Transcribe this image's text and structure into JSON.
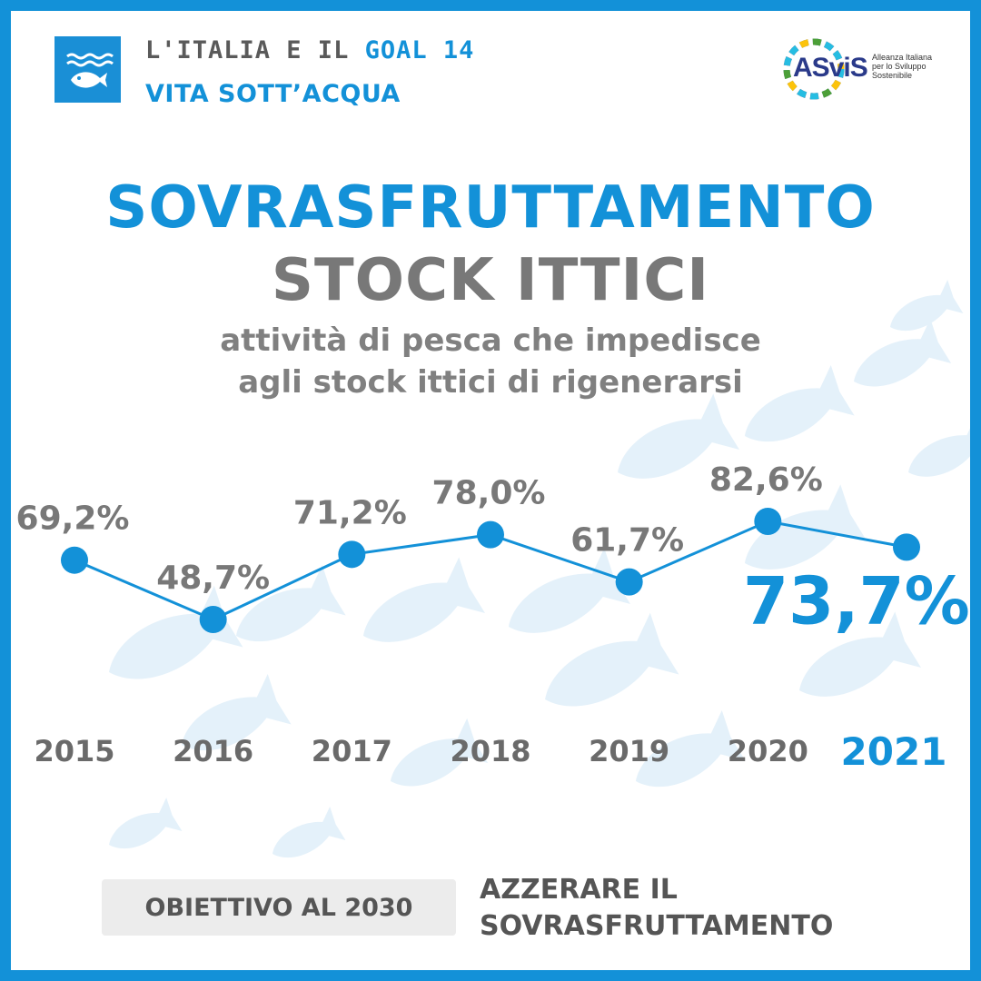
{
  "header": {
    "line1_prefix": "L'ITALIA E IL ",
    "line1_goal": "GOAL 14",
    "line2": "VITA SOTT’ACQUA"
  },
  "logo": {
    "name": "ASviS",
    "sub": [
      "Alleanza Italiana",
      "per lo Sviluppo",
      "Sostenibile"
    ]
  },
  "title": {
    "line1": "SOVRASFRUTTAMENTO",
    "line2": "STOCK ITTICI"
  },
  "subtitle": {
    "line1": "attività di pesca che impedisce",
    "line2": "agli stock ittici di rigenerarsi"
  },
  "colors": {
    "accent": "#1391d8",
    "grey_text": "#787878",
    "fish_bg": "#e4f1fa"
  },
  "chart_data": {
    "type": "line",
    "x": [
      "2015",
      "2016",
      "2017",
      "2018",
      "2019",
      "2020",
      "2021"
    ],
    "values": [
      69.2,
      48.7,
      71.2,
      78.0,
      61.7,
      82.6,
      73.7
    ],
    "labels": [
      "69,2%",
      "48,7%",
      "71,2%",
      "78,0%",
      "61,7%",
      "82,6%",
      "73,7%"
    ],
    "highlight_index": 6,
    "title": "SOVRASFRUTTAMENTO STOCK ITTICI",
    "xlabel": "",
    "ylabel": "",
    "grid": false
  },
  "target": {
    "label": "OBIETTIVO AL 2030",
    "text_line1": "AZZERARE IL",
    "text_line2": "SOVRASFRUTTAMENTO"
  }
}
